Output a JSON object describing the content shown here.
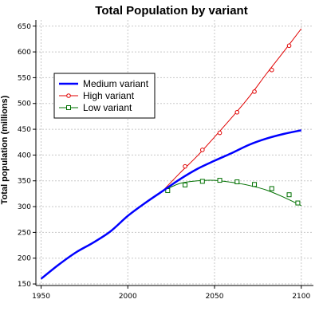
{
  "chart_data": {
    "type": "line",
    "title": "Total Population by variant",
    "xlabel": "",
    "ylabel": "Total population (millions)",
    "xlim": [
      1947,
      2107
    ],
    "ylim": [
      147,
      662
    ],
    "x_ticks": [
      1950,
      2000,
      2050,
      2100
    ],
    "y_ticks": [
      150,
      200,
      250,
      300,
      350,
      400,
      450,
      500,
      550,
      600,
      650
    ],
    "grid": true,
    "legend_position": "upper-left",
    "series": [
      {
        "name": "Medium variant",
        "color": "#0000ff",
        "line_width": 2.5,
        "marker": "none",
        "x": [
          1950,
          1960,
          1970,
          1980,
          1990,
          2000,
          2010,
          2020,
          2030,
          2040,
          2050,
          2060,
          2070,
          2080,
          2090,
          2100
        ],
        "y": [
          160,
          187,
          211,
          230,
          252,
          282,
          307,
          330,
          353,
          373,
          389,
          404,
          420,
          432,
          441,
          448
        ]
      },
      {
        "name": "High variant",
        "color": "#e00000",
        "line_width": 1,
        "marker": "circle",
        "x": [
          2020,
          2030,
          2040,
          2050,
          2060,
          2070,
          2080,
          2090,
          2100
        ],
        "y": [
          330,
          365,
          398,
          435,
          473,
          513,
          558,
          601,
          645
        ],
        "marker_x": [
          2033,
          2043,
          2053,
          2063,
          2073,
          2083,
          2093
        ],
        "marker_y": [
          378,
          410,
          443,
          483,
          523,
          565,
          612
        ]
      },
      {
        "name": "Low variant",
        "color": "#007000",
        "line_width": 1,
        "marker": "square",
        "x": [
          2020,
          2030,
          2040,
          2050,
          2060,
          2070,
          2080,
          2090,
          2100
        ],
        "y": [
          330,
          345,
          350,
          351,
          347,
          341,
          332,
          318,
          302
        ],
        "marker_x": [
          2023,
          2033,
          2043,
          2053,
          2063,
          2073,
          2083,
          2093
        ],
        "marker_y": [
          331,
          342,
          349,
          351,
          348,
          343,
          335,
          323
        ],
        "marker_x_extra": [
          2098
        ],
        "marker_y_extra": [
          307
        ]
      }
    ]
  }
}
